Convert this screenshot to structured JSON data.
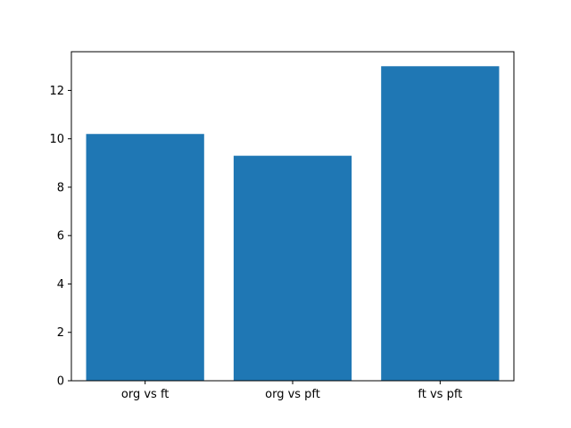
{
  "chart_data": {
    "type": "bar",
    "categories": [
      "org vs ft",
      "org vs pft",
      "ft vs pft"
    ],
    "values": [
      10.2,
      9.3,
      13.0
    ],
    "title": "",
    "xlabel": "",
    "ylabel": "",
    "ylim": [
      0,
      13.6
    ],
    "yticks": [
      0,
      2,
      4,
      6,
      8,
      10,
      12
    ],
    "bar_color": "#1f77b4",
    "axis_color": "#000000",
    "background_color": "#ffffff",
    "grid": false,
    "legend": null,
    "bar_width_fraction": 0.8
  }
}
